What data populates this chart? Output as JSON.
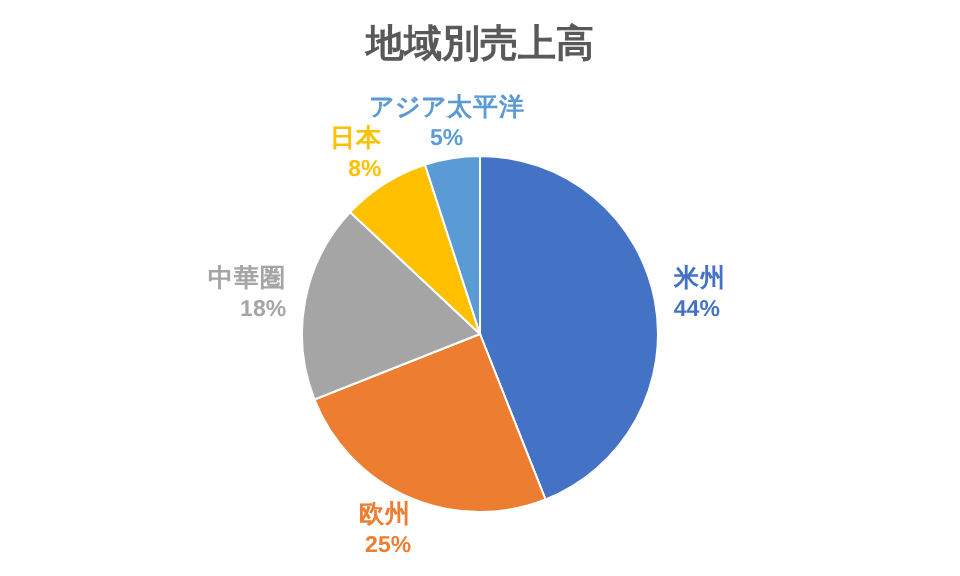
{
  "chart_data": {
    "type": "pie",
    "title": "地域別売上高",
    "categories": [
      "米州",
      "欧州",
      "中華圏",
      "日本",
      "アジア太平洋"
    ],
    "values": [
      44,
      25,
      18,
      8,
      5
    ],
    "colors": [
      "#4472c4",
      "#ed7d31",
      "#a5a5a5",
      "#ffc000",
      "#5b9bd5"
    ],
    "value_labels": [
      "44%",
      "25%",
      "18%",
      "8%",
      "5%"
    ]
  }
}
